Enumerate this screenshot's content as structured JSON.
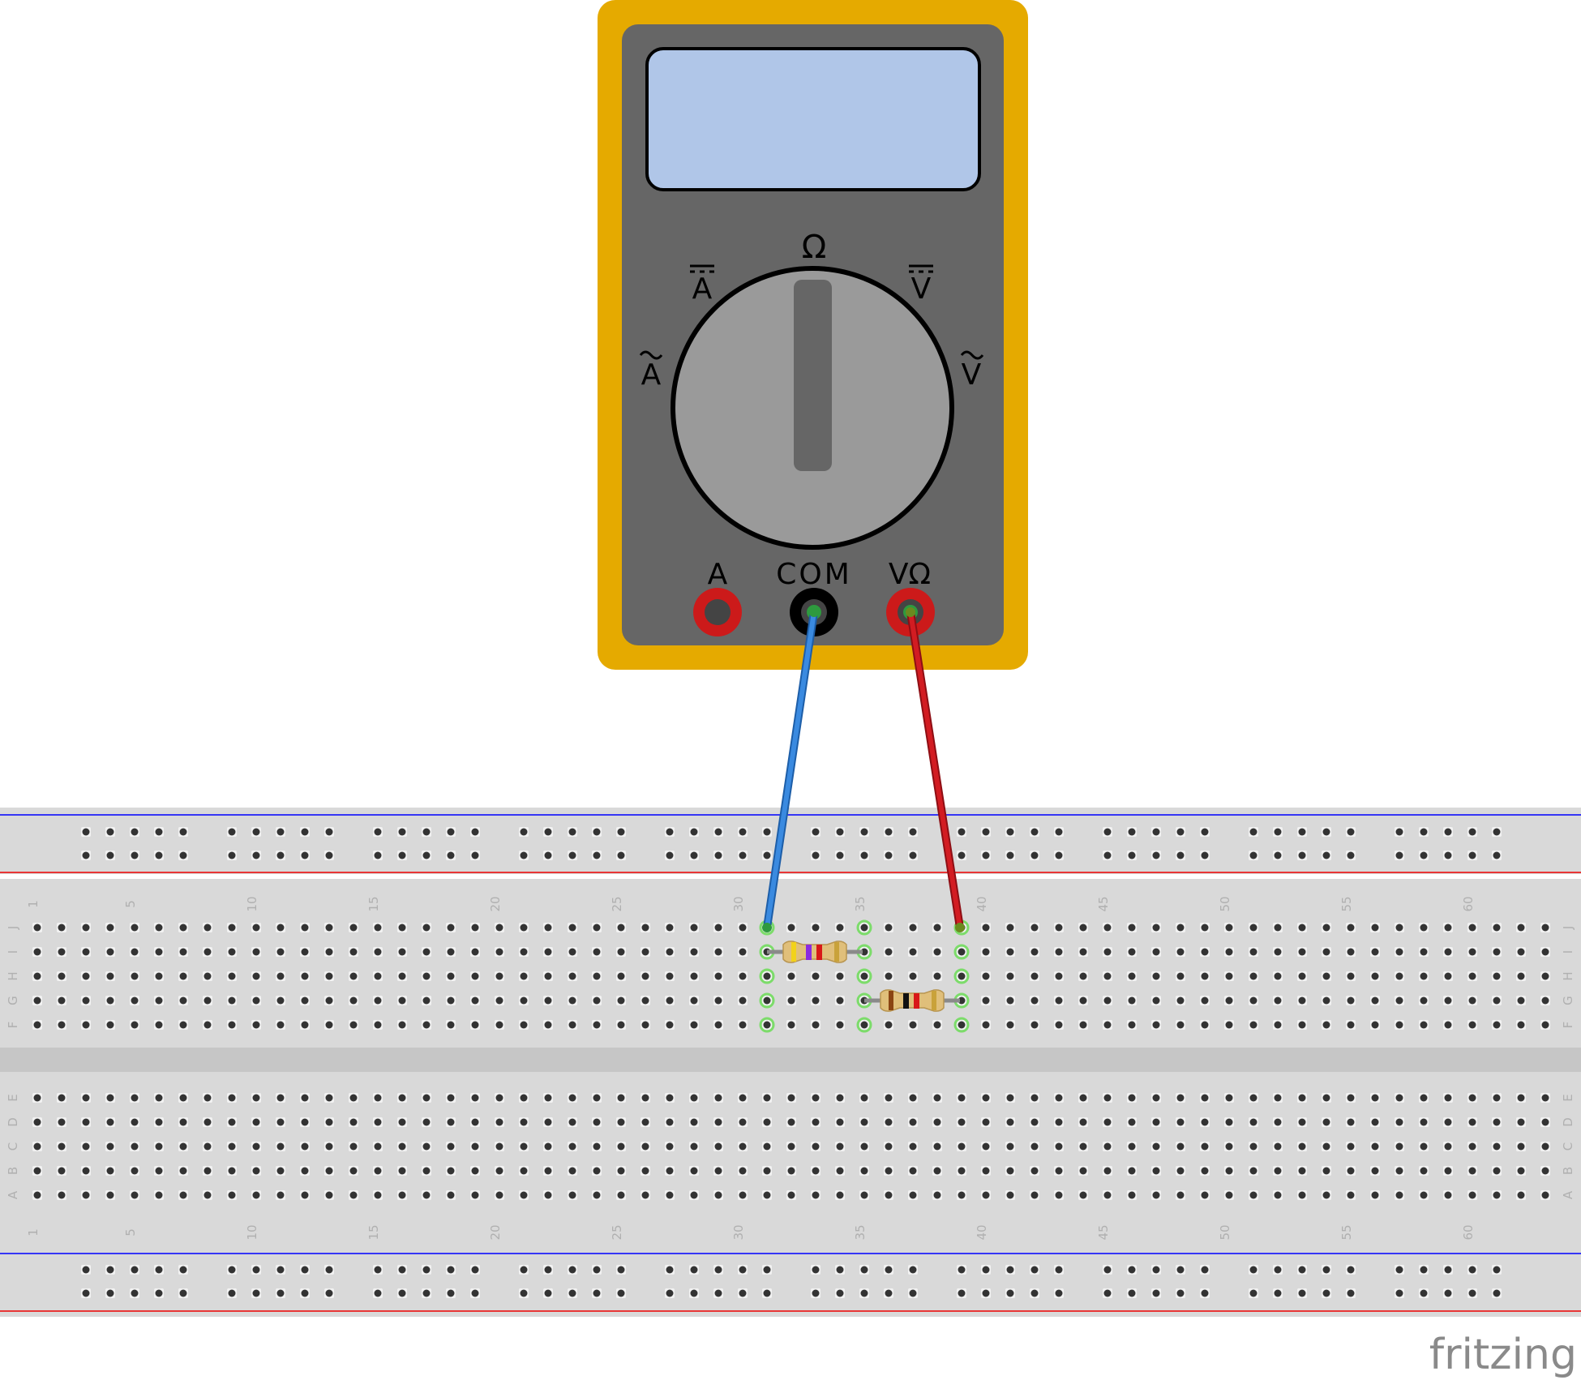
{
  "multimeter": {
    "dial_labels": {
      "ohm": "Ω",
      "dc_amps": "A",
      "dc_volts": "V",
      "ac_amps": "A",
      "ac_volts": "V"
    },
    "jack_labels": {
      "amps": "A",
      "com": "COM",
      "volt_ohm": "VΩ"
    },
    "colors": {
      "body": "#e5aa00",
      "panel": "#666666",
      "display": "#b0c6e8",
      "knob": "#9a9a9a"
    }
  },
  "breadboard": {
    "column_numbers": [
      "1",
      "5",
      "10",
      "15",
      "20",
      "25",
      "30",
      "35",
      "40",
      "45",
      "50",
      "55",
      "60"
    ],
    "row_letters_top": [
      "J",
      "I",
      "H",
      "G",
      "F"
    ],
    "row_letters_bottom": [
      "E",
      "D",
      "C",
      "B",
      "A"
    ],
    "colors": {
      "board": "#d9d9d9",
      "rail_blue": "#0000ff",
      "rail_red": "#ee0000",
      "active_hole": "#7cdc6a"
    }
  },
  "wires": [
    {
      "name": "com-wire",
      "color": "#2f7fd6"
    },
    {
      "name": "vohm-wire",
      "color": "#c8141c"
    }
  ],
  "watermark": "fritzing"
}
